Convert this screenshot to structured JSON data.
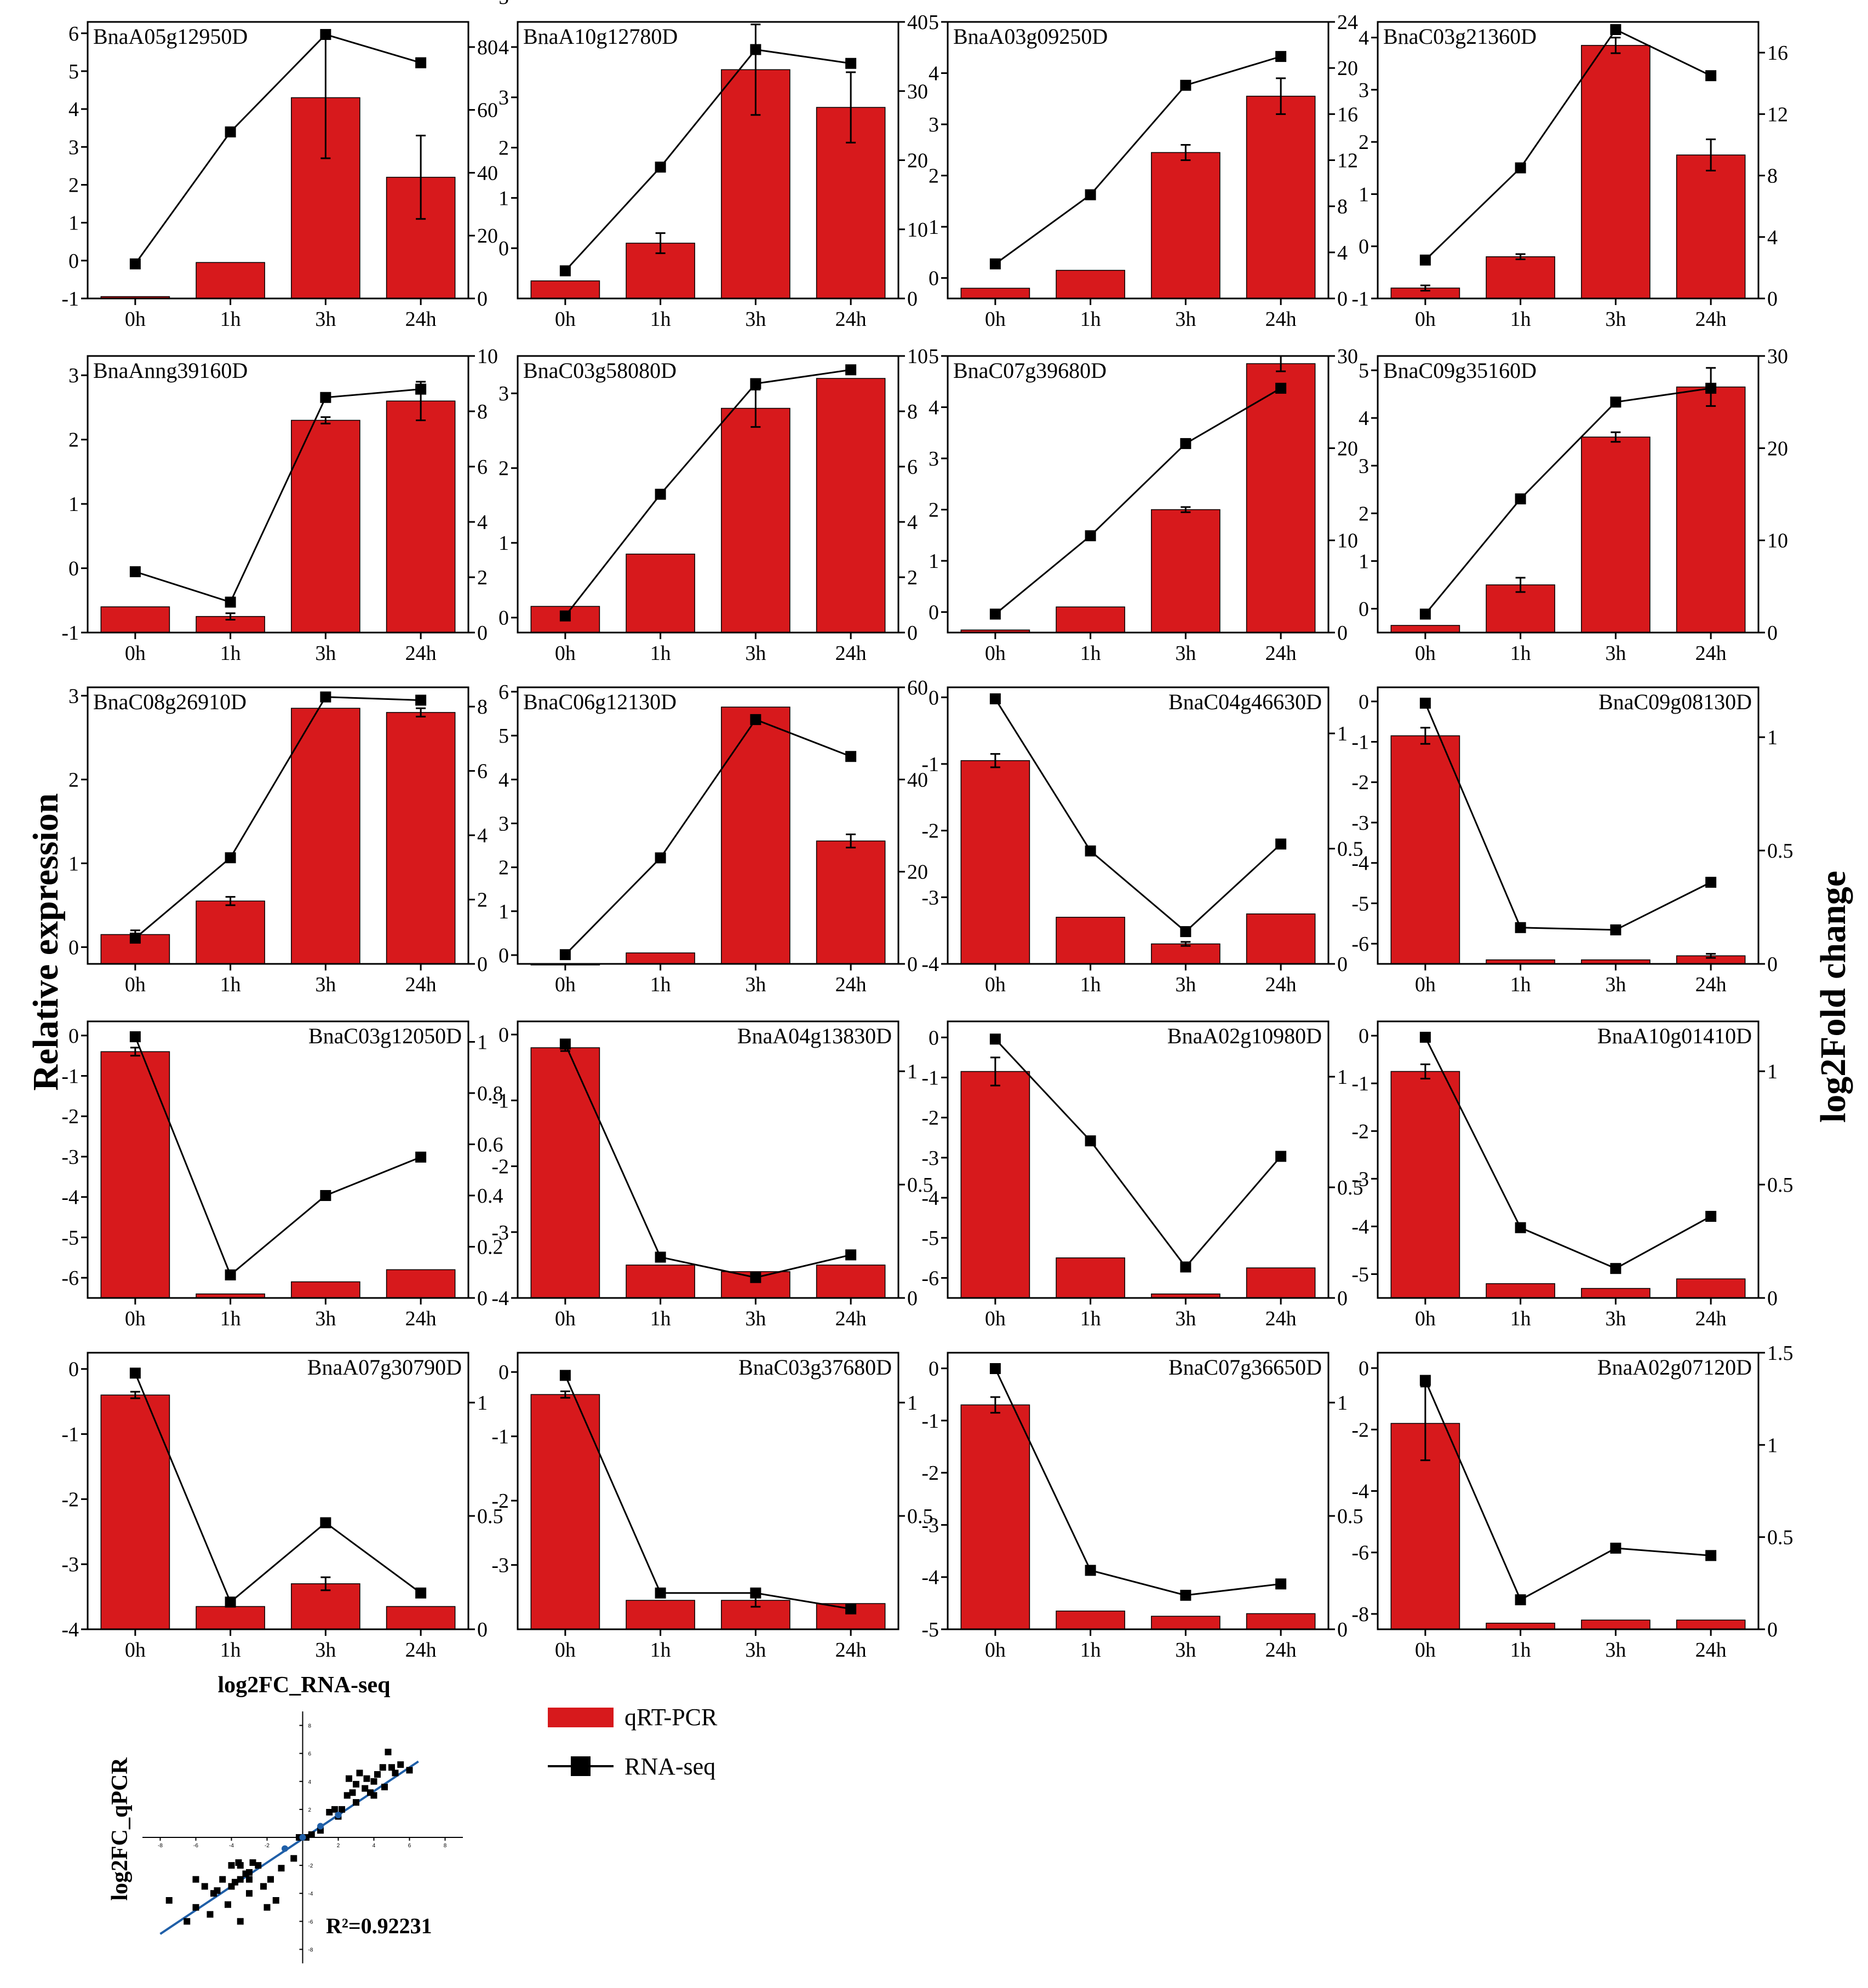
{
  "figure": {
    "left_axis_label": "Relative expression",
    "right_axis_label": "log2Fold change",
    "legend": {
      "bar_label": "qRT-PCR",
      "line_label": "RNA-seq"
    },
    "colors": {
      "bar": "#d7191c",
      "line": "#000000",
      "fit": "#1f5fa8"
    }
  },
  "chart_data": [
    {
      "type": "bar",
      "title": "BnaA05g12950D",
      "categories": [
        "0h",
        "1h",
        "3h",
        "24h"
      ],
      "bars": [
        -0.95,
        -0.05,
        4.3,
        2.2
      ],
      "bar_err": [
        0,
        0,
        1.6,
        1.1
      ],
      "line": [
        11,
        53,
        84,
        75
      ],
      "ylim_left": [
        -1,
        6.3
      ],
      "yticks_left": [
        -1,
        0,
        1,
        2,
        3,
        4,
        5,
        6
      ],
      "ylim_right": [
        0,
        88
      ],
      "yticks_right": [
        0,
        20,
        40,
        60,
        80
      ],
      "label_pos": "left"
    },
    {
      "type": "bar",
      "title": "BnaA10g12780D",
      "categories": [
        "0h",
        "1h",
        "3h",
        "24h"
      ],
      "bars": [
        -0.65,
        0.1,
        3.55,
        2.8
      ],
      "bar_err": [
        0,
        0.2,
        0.9,
        0.7
      ],
      "line": [
        4,
        19,
        36,
        34
      ],
      "ylim_left": [
        -1,
        4.5
      ],
      "yticks_left": [
        0,
        1,
        2,
        3,
        4,
        5
      ],
      "ylim_right": [
        0,
        40
      ],
      "yticks_right": [
        0,
        10,
        20,
        30,
        40
      ],
      "label_pos": "left"
    },
    {
      "type": "bar",
      "title": "BnaA03g09250D",
      "categories": [
        "0h",
        "1h",
        "3h",
        "24h"
      ],
      "bars": [
        -0.2,
        0.15,
        2.45,
        3.55
      ],
      "bar_err": [
        0,
        0,
        0.15,
        0.35
      ],
      "line": [
        3,
        9,
        18.5,
        21
      ],
      "ylim_left": [
        -0.4,
        5
      ],
      "yticks_left": [
        0,
        1,
        2,
        3,
        4,
        5
      ],
      "ylim_right": [
        0,
        24
      ],
      "yticks_right": [
        0,
        4,
        8,
        12,
        16,
        20,
        24
      ],
      "label_pos": "left"
    },
    {
      "type": "bar",
      "title": "BnaC03g21360D",
      "categories": [
        "0h",
        "1h",
        "3h",
        "24h"
      ],
      "bars": [
        -0.8,
        -0.2,
        3.85,
        1.75
      ],
      "bar_err": [
        0.05,
        0.05,
        0.15,
        0.3
      ],
      "line": [
        2.5,
        8.5,
        17.5,
        14.5
      ],
      "ylim_left": [
        -1,
        4.3
      ],
      "yticks_left": [
        -1,
        0,
        1,
        2,
        3,
        4
      ],
      "ylim_right": [
        0,
        18
      ],
      "yticks_right": [
        0,
        4,
        8,
        12,
        16
      ],
      "label_pos": "left"
    },
    {
      "type": "bar",
      "title": "BnaAnng39160D",
      "categories": [
        "0h",
        "1h",
        "3h",
        "24h"
      ],
      "bars": [
        -0.6,
        -0.75,
        2.3,
        2.6
      ],
      "bar_err": [
        0,
        0.05,
        0.05,
        0.3
      ],
      "line": [
        2.2,
        1.1,
        8.5,
        8.8
      ],
      "ylim_left": [
        -1,
        3.3
      ],
      "yticks_left": [
        -1,
        0,
        1,
        2,
        3
      ],
      "ylim_right": [
        0,
        10
      ],
      "yticks_right": [
        0,
        2,
        4,
        6,
        8,
        10
      ],
      "label_pos": "left"
    },
    {
      "type": "bar",
      "title": "BnaC03g58080D",
      "categories": [
        "0h",
        "1h",
        "3h",
        "24h"
      ],
      "bars": [
        0.15,
        0.85,
        2.8,
        3.2
      ],
      "bar_err": [
        0,
        0,
        0.25,
        0
      ],
      "line": [
        0.6,
        5,
        9,
        9.5
      ],
      "ylim_left": [
        -0.2,
        3.5
      ],
      "yticks_left": [
        0,
        1,
        2,
        3
      ],
      "ylim_right": [
        0,
        10
      ],
      "yticks_right": [
        0,
        2,
        4,
        6,
        8,
        10
      ],
      "label_pos": "left"
    },
    {
      "type": "bar",
      "title": "BnaC07g39680D",
      "categories": [
        "0h",
        "1h",
        "3h",
        "24h"
      ],
      "bars": [
        -0.35,
        0.1,
        2,
        4.85
      ],
      "bar_err": [
        0,
        0,
        0.05,
        0.15
      ],
      "line": [
        2,
        10.5,
        20.5,
        26.5
      ],
      "ylim_left": [
        -0.4,
        5
      ],
      "yticks_left": [
        0,
        1,
        2,
        3,
        4,
        5
      ],
      "ylim_right": [
        0,
        30
      ],
      "yticks_right": [
        0,
        10,
        20,
        30
      ],
      "label_pos": "left"
    },
    {
      "type": "bar",
      "title": "BnaC09g35160D",
      "categories": [
        "0h",
        "1h",
        "3h",
        "24h"
      ],
      "bars": [
        -0.35,
        0.5,
        3.6,
        4.65
      ],
      "bar_err": [
        0,
        0.15,
        0.1,
        0.4
      ],
      "line": [
        2,
        14.5,
        25,
        26.5
      ],
      "ylim_left": [
        -0.5,
        5.3
      ],
      "yticks_left": [
        0,
        1,
        2,
        3,
        4,
        5
      ],
      "ylim_right": [
        0,
        30
      ],
      "yticks_right": [
        0,
        10,
        20,
        30
      ],
      "label_pos": "left"
    },
    {
      "type": "bar",
      "title": "BnaC08g26910D",
      "categories": [
        "0h",
        "1h",
        "3h",
        "24h"
      ],
      "bars": [
        0.15,
        0.55,
        2.85,
        2.8
      ],
      "bar_err": [
        0.05,
        0.05,
        0,
        0.05
      ],
      "line": [
        0.8,
        3.3,
        8.3,
        8.2
      ],
      "ylim_left": [
        -0.2,
        3.1
      ],
      "yticks_left": [
        0,
        1,
        2,
        3
      ],
      "ylim_right": [
        0,
        8.6
      ],
      "yticks_right": [
        0,
        2,
        4,
        6,
        8
      ],
      "label_pos": "left"
    },
    {
      "type": "bar",
      "title": "BnaC06g12130D",
      "categories": [
        "0h",
        "1h",
        "3h",
        "24h"
      ],
      "bars": [
        -0.2,
        0.05,
        5.65,
        2.6
      ],
      "bar_err": [
        0,
        0,
        0,
        0.15
      ],
      "line": [
        2,
        23,
        53,
        45
      ],
      "ylim_left": [
        -0.2,
        6.1
      ],
      "yticks_left": [
        0,
        1,
        2,
        3,
        4,
        5,
        6
      ],
      "ylim_right": [
        0,
        60
      ],
      "yticks_right": [
        0,
        20,
        40,
        60
      ],
      "label_pos": "left"
    },
    {
      "type": "bar",
      "title": "BnaC04g46630D",
      "categories": [
        "0h",
        "1h",
        "3h",
        "24h"
      ],
      "bars": [
        -0.95,
        -3.3,
        -3.7,
        -3.25
      ],
      "bar_err": [
        0.1,
        0,
        0.03,
        0
      ],
      "line": [
        1.15,
        0.49,
        0.14,
        0.52
      ],
      "ylim_left": [
        -4,
        0.15
      ],
      "yticks_left": [
        -4,
        -3,
        -2,
        -1,
        0
      ],
      "ylim_right": [
        0,
        1.2
      ],
      "yticks_right": [
        0,
        0.5,
        1.0
      ],
      "label_pos": "right"
    },
    {
      "type": "bar",
      "title": "BnaC09g08130D",
      "categories": [
        "0h",
        "1h",
        "3h",
        "24h"
      ],
      "bars": [
        -0.85,
        -6.4,
        -6.4,
        -6.3
      ],
      "bar_err": [
        0.2,
        0,
        0,
        0.05
      ],
      "line": [
        1.15,
        0.16,
        0.15,
        0.36
      ],
      "ylim_left": [
        -6.5,
        0.35
      ],
      "yticks_left": [
        -6,
        -5,
        -4,
        -3,
        -2,
        -1,
        0
      ],
      "ylim_right": [
        0,
        1.22
      ],
      "yticks_right": [
        0,
        0.5,
        1.0
      ],
      "label_pos": "right"
    },
    {
      "type": "bar",
      "title": "BnaC03g12050D",
      "categories": [
        "0h",
        "1h",
        "3h",
        "24h"
      ],
      "bars": [
        -0.4,
        -6.4,
        -6.1,
        -5.8
      ],
      "bar_err": [
        0.1,
        0,
        0,
        0
      ],
      "line": [
        1.02,
        0.09,
        0.4,
        0.55
      ],
      "ylim_left": [
        -6.5,
        0.35
      ],
      "yticks_left": [
        -6,
        -5,
        -4,
        -3,
        -2,
        -1,
        0
      ],
      "ylim_right": [
        0,
        1.08
      ],
      "yticks_right": [
        0,
        0.2,
        0.4,
        0.6,
        0.8,
        1.0
      ],
      "label_pos": "right"
    },
    {
      "type": "bar",
      "title": "BnaA04g13830D",
      "categories": [
        "0h",
        "1h",
        "3h",
        "24h"
      ],
      "bars": [
        -0.2,
        -3.5,
        -3.6,
        -3.5
      ],
      "bar_err": [
        0.05,
        0,
        0,
        0
      ],
      "line": [
        1.12,
        0.18,
        0.09,
        0.19
      ],
      "ylim_left": [
        -4,
        0.2
      ],
      "yticks_left": [
        -4,
        -3,
        -2,
        -1,
        0
      ],
      "ylim_right": [
        0,
        1.22
      ],
      "yticks_right": [
        0,
        0.5,
        1.0
      ],
      "label_pos": "right"
    },
    {
      "type": "bar",
      "title": "BnaA02g10980D",
      "categories": [
        "0h",
        "1h",
        "3h",
        "24h"
      ],
      "bars": [
        -0.85,
        -5.5,
        -6.4,
        -5.75
      ],
      "bar_err": [
        0.35,
        0,
        0,
        0
      ],
      "line": [
        1.17,
        0.71,
        0.14,
        0.64
      ],
      "ylim_left": [
        -6.5,
        0.4
      ],
      "yticks_left": [
        -6,
        -5,
        -4,
        -3,
        -2,
        -1,
        0
      ],
      "ylim_right": [
        0,
        1.25
      ],
      "yticks_right": [
        0,
        0.5,
        1.0
      ],
      "label_pos": "right"
    },
    {
      "type": "bar",
      "title": "BnaA10g01410D",
      "categories": [
        "0h",
        "1h",
        "3h",
        "24h"
      ],
      "bars": [
        -0.75,
        -5.2,
        -5.3,
        -5.1
      ],
      "bar_err": [
        0.15,
        0,
        0,
        0
      ],
      "line": [
        1.15,
        0.31,
        0.13,
        0.36
      ],
      "ylim_left": [
        -5.5,
        0.3
      ],
      "yticks_left": [
        -5,
        -4,
        -3,
        -2,
        -1,
        0
      ],
      "ylim_right": [
        0,
        1.22
      ],
      "yticks_right": [
        0,
        0.5,
        1.0
      ],
      "label_pos": "right"
    },
    {
      "type": "bar",
      "title": "BnaA07g30790D",
      "categories": [
        "0h",
        "1h",
        "3h",
        "24h"
      ],
      "bars": [
        -0.4,
        -3.65,
        -3.3,
        -3.65
      ],
      "bar_err": [
        0.05,
        0,
        0.1,
        0
      ],
      "line": [
        1.13,
        0.12,
        0.47,
        0.16
      ],
      "ylim_left": [
        -4,
        0.25
      ],
      "yticks_left": [
        -4,
        -3,
        -2,
        -1,
        0
      ],
      "ylim_right": [
        0,
        1.22
      ],
      "yticks_right": [
        0,
        0.5,
        1.0
      ],
      "label_pos": "right"
    },
    {
      "type": "bar",
      "title": "BnaC03g37680D",
      "categories": [
        "0h",
        "1h",
        "3h",
        "24h"
      ],
      "bars": [
        -0.35,
        -3.55,
        -3.55,
        -3.6
      ],
      "bar_err": [
        0.05,
        0,
        0.1,
        0
      ],
      "line": [
        1.12,
        0.16,
        0.16,
        0.09
      ],
      "ylim_left": [
        -4,
        0.3
      ],
      "yticks_left": [
        -3,
        -2,
        -1,
        0
      ],
      "ylim_right": [
        0,
        1.22
      ],
      "yticks_right": [
        0.5,
        1.0
      ],
      "label_pos": "right"
    },
    {
      "type": "bar",
      "title": "BnaC07g36650D",
      "categories": [
        "0h",
        "1h",
        "3h",
        "24h"
      ],
      "bars": [
        -0.7,
        -4.65,
        -4.75,
        -4.7
      ],
      "bar_err": [
        0.15,
        0,
        0,
        0
      ],
      "line": [
        1.15,
        0.26,
        0.15,
        0.2
      ],
      "ylim_left": [
        -5,
        0.3
      ],
      "yticks_left": [
        -5,
        -4,
        -3,
        -2,
        -1,
        0
      ],
      "ylim_right": [
        0,
        1.22
      ],
      "yticks_right": [
        0,
        0.5,
        1.0
      ],
      "label_pos": "right"
    },
    {
      "type": "bar",
      "title": "BnaA02g07120D",
      "categories": [
        "0h",
        "1h",
        "3h",
        "24h"
      ],
      "bars": [
        -1.8,
        -8.3,
        -8.2,
        -8.2
      ],
      "bar_err": [
        1.2,
        0,
        0,
        0
      ],
      "line": [
        1.35,
        0.16,
        0.44,
        0.4
      ],
      "ylim_left": [
        -8.5,
        0.5
      ],
      "yticks_left": [
        -8,
        -6,
        -4,
        -2,
        0
      ],
      "ylim_right": [
        0,
        1.5
      ],
      "yticks_right": [
        0,
        0.5,
        1.0,
        1.5
      ],
      "label_pos": "right"
    },
    {
      "type": "scatter",
      "title": "log2FC_RNA-seq",
      "ylabel": "log2FC_qPCR",
      "annotation": "R²=0.92231",
      "xticks": [
        -8,
        -6,
        -4,
        -2,
        0,
        2,
        4,
        6,
        8
      ],
      "yticks": [
        -8,
        -6,
        -4,
        -2,
        0,
        2,
        4,
        6,
        8
      ],
      "xlim": [
        -9,
        9
      ],
      "ylim": [
        -9,
        9
      ],
      "fit": {
        "slope": 0.85,
        "intercept": -0.1,
        "x_range": [
          -8,
          6.5
        ]
      },
      "points": [
        [
          -7.5,
          -4.5
        ],
        [
          -6,
          -3
        ],
        [
          -5.5,
          -3.5
        ],
        [
          -6,
          -5
        ],
        [
          -6.5,
          -6
        ],
        [
          -5,
          -4
        ],
        [
          -4.5,
          -3
        ],
        [
          -4,
          -3.5
        ],
        [
          -4,
          -2
        ],
        [
          -3.5,
          -2
        ],
        [
          -3,
          -2.5
        ],
        [
          -3,
          -4
        ],
        [
          -3.5,
          -3
        ],
        [
          -3,
          -3
        ],
        [
          -2.5,
          -2
        ],
        [
          -2.2,
          -3.5
        ],
        [
          -1.8,
          -3
        ],
        [
          -1.5,
          -4.5
        ],
        [
          -2,
          -5
        ],
        [
          -3.5,
          -6
        ],
        [
          -3.8,
          -3.2
        ],
        [
          -3.2,
          -2.6
        ],
        [
          -2.8,
          -1.8
        ],
        [
          -5.2,
          -5.5
        ],
        [
          -4.8,
          -3.8
        ],
        [
          -4.2,
          -4.8
        ],
        [
          -3.6,
          -1.8
        ],
        [
          -1.2,
          -2.2
        ],
        [
          -0.5,
          -1.5
        ],
        [
          -0.2,
          0
        ],
        [
          0.2,
          0
        ],
        [
          0.5,
          0.2
        ],
        [
          1,
          0.5
        ],
        [
          1.8,
          2
        ],
        [
          2,
          1.5
        ],
        [
          2.5,
          3
        ],
        [
          2.2,
          2
        ],
        [
          3,
          2.5
        ],
        [
          3,
          3.8
        ],
        [
          3.5,
          3.5
        ],
        [
          4,
          4
        ],
        [
          4.5,
          5
        ],
        [
          5,
          5
        ],
        [
          5.5,
          5.2
        ],
        [
          6,
          4.8
        ],
        [
          4.8,
          6.1
        ],
        [
          3.8,
          3.2
        ],
        [
          4.2,
          4.5
        ],
        [
          3.2,
          4.6
        ],
        [
          2.8,
          3.2
        ],
        [
          4.6,
          3.6
        ],
        [
          5.2,
          4.6
        ],
        [
          3.6,
          4.2
        ],
        [
          2.6,
          4.2
        ],
        [
          1.5,
          1.8
        ],
        [
          4,
          3
        ]
      ],
      "blue_points": [
        [
          0,
          0
        ],
        [
          1,
          0.8
        ],
        [
          2,
          1.6
        ],
        [
          -1,
          -0.8
        ]
      ]
    }
  ]
}
